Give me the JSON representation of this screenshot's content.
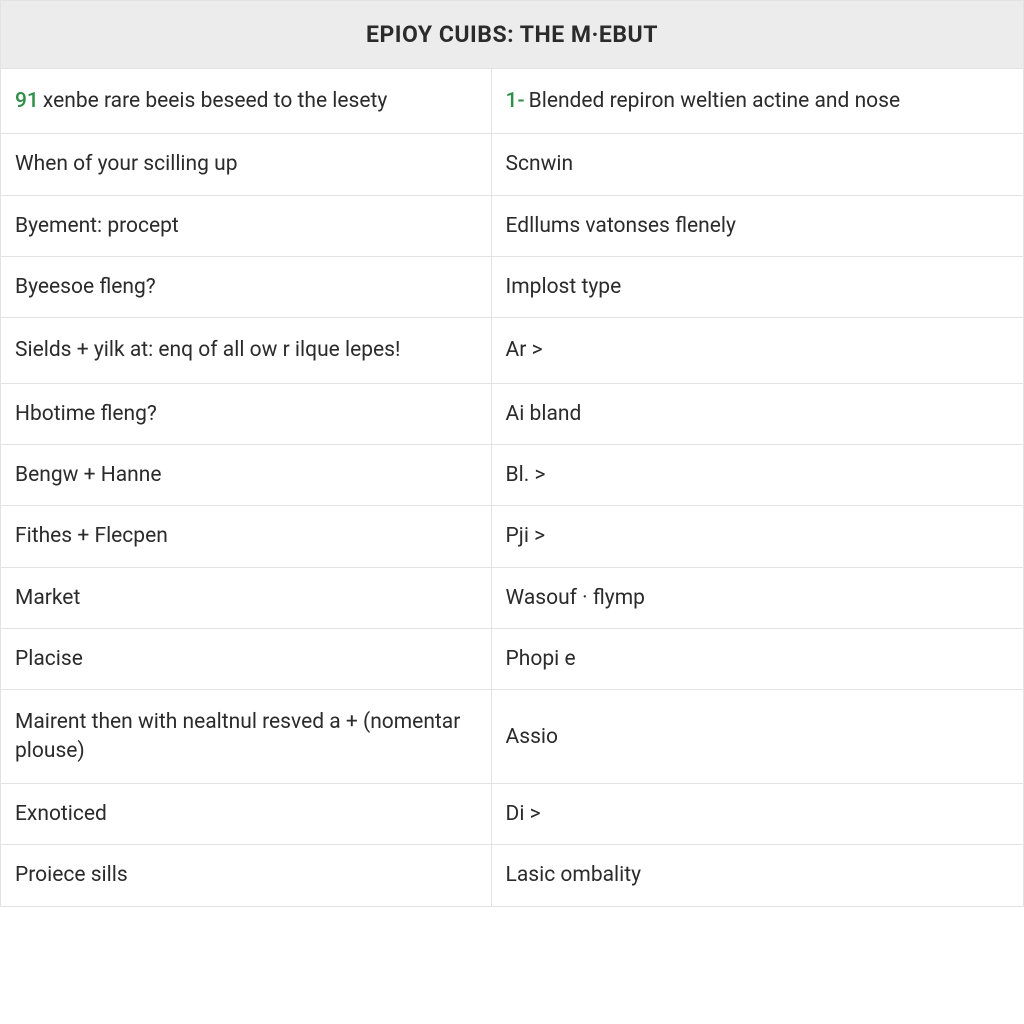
{
  "table": {
    "type": "table",
    "header": "EPIOY CUIBS: THE M·EBUT",
    "background_color": "#ffffff",
    "header_bg": "#ececec",
    "border_color": "#e3e3e3",
    "text_color": "#2b2b2b",
    "accent_color": "#2f8f4a",
    "header_fontsize": 23,
    "cell_fontsize": 21,
    "column_widths": [
      "48%",
      "52%"
    ],
    "rows": [
      {
        "left_lead": "91",
        "left": "xenbe rare beeis beseed to the lesety",
        "right_lead": "1-",
        "right": "Blended repiron weltien actine and nose",
        "tall": true
      },
      {
        "left_lead": "",
        "left": "When of your scilling up",
        "right_lead": "",
        "right": "Scnwin"
      },
      {
        "left_lead": "",
        "left": "Byement: procept",
        "right_lead": "",
        "right": "Edllums vatonses flenely"
      },
      {
        "left_lead": "",
        "left": "Byeesoe fleng?",
        "right_lead": "",
        "right": "Implost type"
      },
      {
        "left_lead": "",
        "left": "Sields + yilk at: enq of all ow r ilque lepes!",
        "right_lead": "",
        "right": "Ar >",
        "tall": true
      },
      {
        "left_lead": "",
        "left": "Hbotime fleng?",
        "right_lead": "",
        "right": "Ai bland"
      },
      {
        "left_lead": "",
        "left": "Bengw + Hanne",
        "right_lead": "",
        "right": "Bl. >"
      },
      {
        "left_lead": "",
        "left": "Fithes + Flecpen",
        "right_lead": "",
        "right": "Pji >"
      },
      {
        "left_lead": "",
        "left": "Market",
        "right_lead": "",
        "right": "Wasouf · flymp"
      },
      {
        "left_lead": "",
        "left": "Placise",
        "right_lead": "",
        "right": "Phopi e"
      },
      {
        "left_lead": "",
        "left": "Mairent then with nealtnul resved a + (nomentar plouse)",
        "right_lead": "",
        "right": "Assio",
        "tall": true
      },
      {
        "left_lead": "",
        "left": "Exnoticed",
        "right_lead": "",
        "right": "Di >"
      },
      {
        "left_lead": "",
        "left": "Proiece sills",
        "right_lead": "",
        "right": "Lasic ombality"
      }
    ]
  }
}
